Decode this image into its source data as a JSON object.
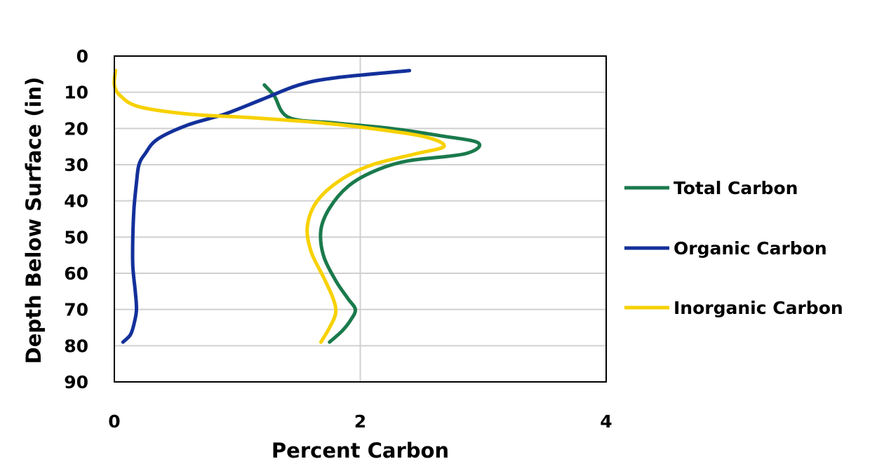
{
  "chart_data": {
    "type": "line",
    "title": "",
    "xlabel": "Percent Carbon",
    "ylabel": "Depth Below Surface (in)",
    "xlim": [
      0,
      4
    ],
    "ylim": [
      0,
      90
    ],
    "y_inverted": true,
    "x_ticks": [
      "0",
      "2",
      "4"
    ],
    "y_ticks": [
      "0",
      "10",
      "20",
      "30",
      "40",
      "50",
      "60",
      "70",
      "80",
      "90"
    ],
    "grid": true,
    "legend_position": "right",
    "series": [
      {
        "name": "Total Carbon",
        "color": "#1a7a4c",
        "x": [
          1.22,
          1.3,
          1.42,
          1.8,
          2.25,
          2.65,
          2.96,
          2.85,
          2.38,
          2.1,
          1.9,
          1.75,
          1.68,
          1.7,
          1.8,
          1.9,
          1.96,
          1.92,
          1.85,
          1.75
        ],
        "y": [
          8,
          11,
          17,
          18.5,
          20,
          22,
          24,
          27,
          29,
          32,
          36,
          42,
          48,
          55,
          62,
          67,
          70,
          73,
          76,
          79
        ]
      },
      {
        "name": "Organic Carbon",
        "color": "#13309a",
        "x": [
          2.4,
          1.8,
          1.5,
          1.2,
          0.9,
          0.6,
          0.35,
          0.25,
          0.2,
          0.18,
          0.16,
          0.15,
          0.15,
          0.17,
          0.18,
          0.16,
          0.13,
          0.07
        ],
        "y": [
          4,
          6,
          8,
          12,
          16,
          19,
          23,
          27,
          30,
          35,
          42,
          50,
          58,
          65,
          70,
          74,
          77,
          79
        ]
      },
      {
        "name": "Inorganic Carbon",
        "color": "#f7d100",
        "x": [
          0.01,
          0.0,
          0.05,
          0.2,
          0.6,
          1.1,
          1.7,
          2.2,
          2.55,
          2.68,
          2.45,
          2.1,
          1.85,
          1.65,
          1.57,
          1.6,
          1.7,
          1.78,
          1.8,
          1.75,
          1.68
        ],
        "y": [
          4,
          8,
          11,
          14,
          16,
          17,
          18.5,
          20.5,
          22.5,
          25,
          27,
          30,
          34,
          40,
          47,
          54,
          61,
          67,
          71,
          75,
          79
        ]
      }
    ]
  }
}
